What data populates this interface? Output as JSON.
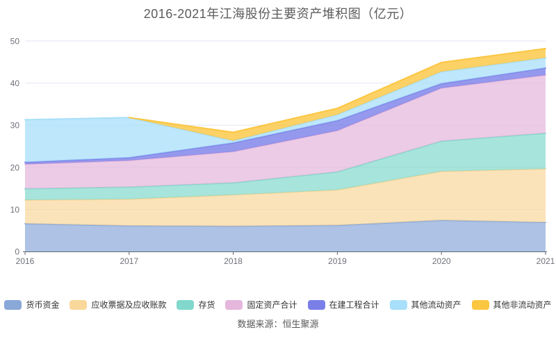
{
  "title": "2016-2021年江海股份主要资产堆积图（亿元）",
  "source": "数据来源：恒生聚源",
  "axis": {
    "x_labels": [
      "2016",
      "2017",
      "2018",
      "2019",
      "2020",
      "2021"
    ],
    "y_labels": [
      "0",
      "10",
      "20",
      "30",
      "40",
      "50"
    ],
    "label_color": "#6E7079",
    "line_color": "#5E6470",
    "grid_color": "#E0E6F1"
  },
  "chart_data": {
    "type": "area",
    "stacked": true,
    "title": "2016-2021年江海股份主要资产堆积图（亿元）",
    "x": [
      2016,
      2017,
      2018,
      2019,
      2020,
      2021
    ],
    "xlabel": "",
    "ylabel": "",
    "ylim": [
      0,
      50
    ],
    "yticks": [
      0,
      10,
      20,
      30,
      40,
      50
    ],
    "grid": true,
    "legend_position": "bottom",
    "series": [
      {
        "id": "monetary-funds",
        "name": "货币资金",
        "color": "#8AA8D8",
        "fill": "rgba(138,168,216,0.70)",
        "values": [
          6.6,
          6.1,
          6.0,
          6.2,
          7.4,
          6.9
        ]
      },
      {
        "id": "notes-and-accounts-receivable",
        "name": "应收票据及应收账款",
        "color": "#FAD79B",
        "fill": "rgba(250,215,155,0.70)",
        "values": [
          5.6,
          6.3,
          7.4,
          8.4,
          11.6,
          12.7
        ]
      },
      {
        "id": "inventory",
        "name": "存货",
        "color": "#82D8CC",
        "fill": "rgba(130,216,204,0.70)",
        "values": [
          2.7,
          2.9,
          2.9,
          4.3,
          7.2,
          8.5
        ]
      },
      {
        "id": "fixed-assets-total",
        "name": "固定资产合计",
        "color": "#E5B7DC",
        "fill": "rgba(229,183,220,0.72)",
        "values": [
          5.8,
          6.3,
          7.4,
          9.8,
          12.6,
          13.8
        ]
      },
      {
        "id": "construction-in-progress-total",
        "name": "在建工程合计",
        "color": "#7A7FE8",
        "fill": "rgba(122,127,232,0.80)",
        "values": [
          0.5,
          0.7,
          2.1,
          2.4,
          1.1,
          1.7
        ]
      },
      {
        "id": "other-current-assets",
        "name": "其他流动资产",
        "color": "#A8DFFA",
        "fill": "rgba(168,223,250,0.75)",
        "values": [
          10.1,
          9.5,
          0.5,
          1.4,
          2.8,
          2.4
        ]
      },
      {
        "id": "other-non-current-assets",
        "name": "其他非流动资产",
        "color": "#FBC640",
        "fill": "rgba(251,198,64,0.80)",
        "values": [
          0.0,
          0.0,
          2.0,
          1.5,
          2.2,
          2.2
        ]
      }
    ]
  }
}
